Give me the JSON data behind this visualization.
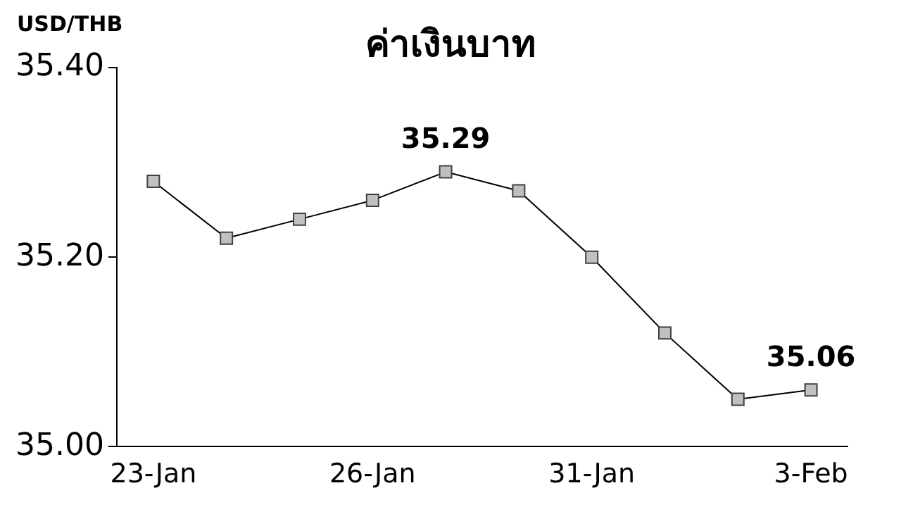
{
  "chart_data": {
    "type": "line",
    "title": "ค่าเงินบาท",
    "ylabel": "USD/THB",
    "categories": [
      "23-Jan",
      null,
      null,
      "26-Jan",
      null,
      null,
      "31-Jan",
      null,
      null,
      "3-Feb"
    ],
    "series": [
      {
        "color": "#000000",
        "values": [
          35.28,
          35.22,
          35.24,
          35.26,
          35.29,
          35.27,
          35.2,
          35.12,
          35.05,
          35.06
        ],
        "value_labels": [
          null,
          null,
          null,
          null,
          "35.29",
          null,
          null,
          null,
          null,
          "35.06"
        ]
      }
    ],
    "ylim": [
      35.0,
      35.4
    ],
    "yticks": [
      {
        "value": 35.0,
        "label": "35.00"
      },
      {
        "value": 35.2,
        "label": "35.20"
      },
      {
        "value": 35.4,
        "label": "35.40"
      }
    ],
    "marker": "square",
    "line_style": "solid",
    "grid": false,
    "legend": false
  }
}
